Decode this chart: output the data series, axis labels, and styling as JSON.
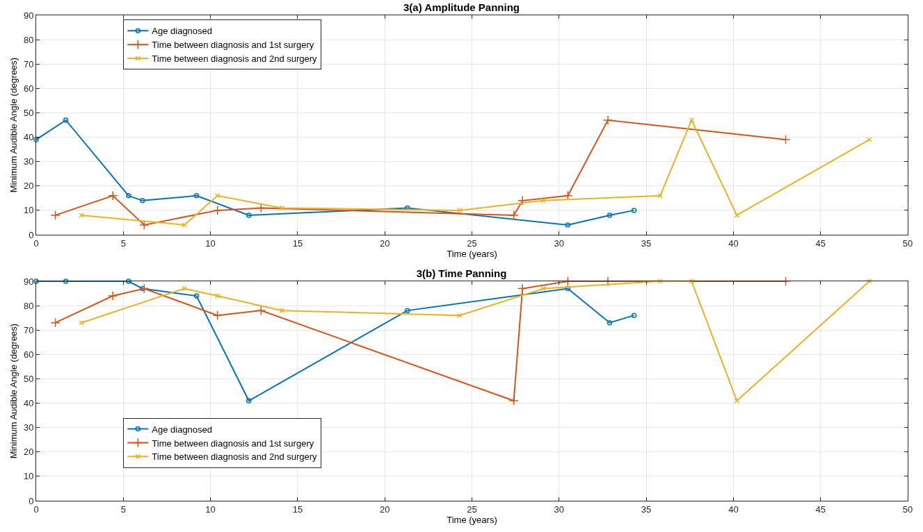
{
  "chart_data": [
    {
      "type": "line",
      "title": "3(a) Amplitude Panning",
      "xlabel": "Time (years)",
      "ylabel": "Minimum Audible Angle (degrees)",
      "xlim": [
        0,
        50
      ],
      "xticks": [
        0,
        5,
        10,
        15,
        20,
        25,
        30,
        35,
        40,
        45,
        50
      ],
      "ylim": [
        0,
        90
      ],
      "yticks": [
        0,
        10,
        20,
        30,
        40,
        50,
        60,
        70,
        80,
        90
      ],
      "grid": true,
      "legend": "top left",
      "line_style": "solid",
      "series": [
        {
          "name": "Age diagnosed",
          "color": "#0072bd",
          "marker": "circle",
          "x": [
            0,
            1.7,
            5.3,
            6.1,
            9.2,
            12.2,
            21.3,
            30.5,
            32.9,
            34.3
          ],
          "values": [
            39,
            47,
            16,
            14,
            16,
            8,
            11,
            4,
            8,
            10
          ]
        },
        {
          "name": "Time between diagnosis and 1st surgery",
          "color": "#d95319",
          "marker": "cross",
          "x": [
            1.1,
            4.4,
            6.2,
            10.4,
            12.9,
            27.4,
            27.9,
            30.5,
            32.8,
            43
          ],
          "values": [
            8,
            16,
            4,
            10,
            11,
            8,
            14,
            16,
            47,
            39
          ]
        },
        {
          "name": "Time between diagnosis and 2nd surgery",
          "color": "#edb120",
          "marker": "x",
          "x": [
            2.6,
            8.5,
            10.4,
            14.1,
            24.3,
            29.1,
            35.8,
            37.6,
            40.2,
            47.8
          ],
          "values": [
            8,
            4,
            16,
            11,
            10,
            14,
            16,
            47,
            8,
            39
          ]
        }
      ]
    },
    {
      "type": "line",
      "title": "3(b) Time Panning",
      "xlabel": "Time (years)",
      "ylabel": "Minimum Audible Angle (degrees)",
      "xlim": [
        0,
        50
      ],
      "xticks": [
        0,
        5,
        10,
        15,
        20,
        25,
        30,
        35,
        40,
        45,
        50
      ],
      "ylim": [
        0,
        90
      ],
      "yticks": [
        0,
        10,
        20,
        30,
        40,
        50,
        60,
        70,
        80,
        90
      ],
      "grid": true,
      "legend": "bottom left",
      "line_style": "solid",
      "series": [
        {
          "name": "Age diagnosed",
          "color": "#0072bd",
          "marker": "circle",
          "x": [
            0,
            1.7,
            5.3,
            6.1,
            9.2,
            12.2,
            21.3,
            30.5,
            32.9,
            34.3
          ],
          "values": [
            90,
            90,
            90,
            87,
            84,
            41,
            78,
            87,
            73,
            76
          ]
        },
        {
          "name": "Time between diagnosis and 1st surgery",
          "color": "#d95319",
          "marker": "cross",
          "x": [
            1.1,
            4.4,
            6.2,
            10.4,
            12.9,
            27.4,
            27.9,
            30.5,
            32.8,
            43
          ],
          "values": [
            73,
            84,
            87,
            76,
            78,
            41,
            87,
            90,
            90,
            90
          ]
        },
        {
          "name": "Time between diagnosis and 2nd surgery",
          "color": "#edb120",
          "marker": "x",
          "x": [
            2.6,
            8.5,
            10.4,
            14.1,
            24.3,
            29.1,
            35.8,
            37.6,
            40.2,
            47.8
          ],
          "values": [
            73,
            87,
            84,
            78,
            76,
            87,
            90,
            90,
            41,
            90
          ]
        }
      ]
    }
  ]
}
